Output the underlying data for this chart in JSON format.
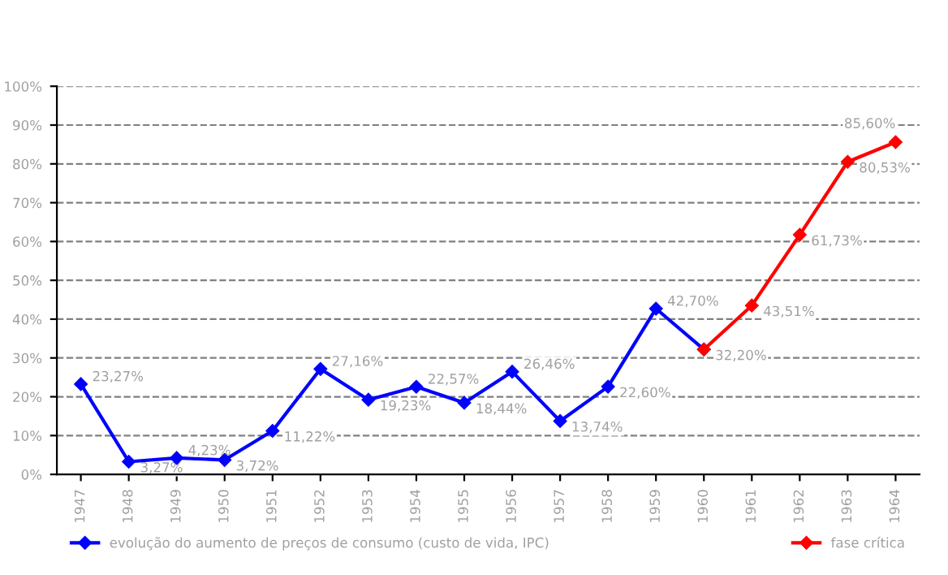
{
  "chart_data": {
    "type": "line",
    "categories": [
      "1947",
      "1948",
      "1949",
      "1950",
      "1951",
      "1952",
      "1953",
      "1954",
      "1955",
      "1956",
      "1957",
      "1958",
      "1959",
      "1960",
      "1961",
      "1962",
      "1963",
      "1964"
    ],
    "series": [
      {
        "name": "evolução do aumento de preços de consumo (custo de vida, IPC)",
        "color": "#0000ff",
        "values": [
          23.27,
          3.27,
          4.23,
          3.72,
          11.22,
          27.16,
          19.23,
          22.57,
          18.44,
          26.46,
          13.74,
          22.6,
          42.7,
          32.2,
          null,
          null,
          null,
          null
        ],
        "value_labels": [
          "23,27%",
          "3,27%",
          "4,23%",
          "3,72%",
          "11,22%",
          "27,16%",
          "19,23%",
          "22,57%",
          "18,44%",
          "26,46%",
          "13,74%",
          "22,60%",
          "42,70%",
          "32,20%",
          null,
          null,
          null,
          null
        ]
      },
      {
        "name": "fase crítica",
        "color": "#ff0000",
        "values": [
          null,
          null,
          null,
          null,
          null,
          null,
          null,
          null,
          null,
          null,
          null,
          null,
          null,
          32.2,
          43.51,
          61.73,
          80.53,
          85.6
        ],
        "value_labels": [
          null,
          null,
          null,
          null,
          null,
          null,
          null,
          null,
          null,
          null,
          null,
          null,
          null,
          null,
          "43,51%",
          "61,73%",
          "80,53%",
          "85,60%"
        ]
      }
    ],
    "ylim": [
      0,
      100
    ],
    "yticks": [
      {
        "value": 0,
        "label": "0%"
      },
      {
        "value": 10,
        "label": "10%"
      },
      {
        "value": 20,
        "label": "20%"
      },
      {
        "value": 30,
        "label": "30%"
      },
      {
        "value": 40,
        "label": "40%"
      },
      {
        "value": 50,
        "label": "50%"
      },
      {
        "value": 60,
        "label": "60%"
      },
      {
        "value": 70,
        "label": "70%"
      },
      {
        "value": 80,
        "label": "80%"
      },
      {
        "value": 90,
        "label": "90%"
      },
      {
        "value": 100,
        "label": "100%"
      }
    ],
    "grid": "y",
    "legend": "bottom",
    "marker": "diamond",
    "line_style": "solid"
  }
}
